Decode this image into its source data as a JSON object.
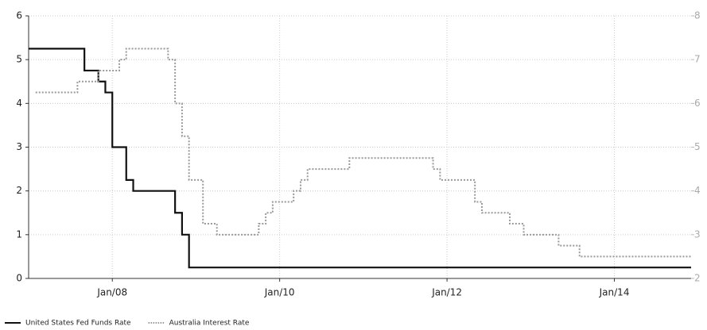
{
  "chart_data": {
    "type": "line",
    "step": "post",
    "grid": true,
    "legend": "bottom-left",
    "xlim": [
      "2007-01",
      "2014-12"
    ],
    "xticks": [
      {
        "value": "2008-01",
        "label": "Jan/08"
      },
      {
        "value": "2010-01",
        "label": "Jan/10"
      },
      {
        "value": "2012-01",
        "label": "Jan/12"
      },
      {
        "value": "2014-01",
        "label": "Jan/14"
      }
    ],
    "ylim": [
      0,
      6
    ],
    "yticks": [
      0,
      1,
      2,
      3,
      4,
      5,
      6
    ],
    "y2lim": [
      2,
      8
    ],
    "y2ticks": [
      2,
      3,
      4,
      5,
      6,
      7,
      8
    ],
    "series": [
      {
        "name": "United States Fed Funds Rate",
        "color": "#111111",
        "style": "solid",
        "axis": "y",
        "x": [
          "2007-01",
          "2007-09",
          "2007-11",
          "2007-12",
          "2008-01",
          "2008-03",
          "2008-04",
          "2008-10",
          "2008-11",
          "2008-12",
          "2014-12"
        ],
        "values": [
          5.25,
          4.75,
          4.5,
          4.25,
          3.0,
          2.25,
          2.0,
          1.5,
          1.0,
          0.25,
          0.25
        ]
      },
      {
        "name": "Australia Interest Rate",
        "color": "#999999",
        "style": "dotted",
        "axis": "y2",
        "x": [
          "2007-02",
          "2007-08",
          "2007-11",
          "2008-02",
          "2008-03",
          "2008-09",
          "2008-10",
          "2008-11",
          "2008-12",
          "2009-02",
          "2009-04",
          "2009-10",
          "2009-11",
          "2009-12",
          "2010-03",
          "2010-04",
          "2010-05",
          "2010-11",
          "2011-11",
          "2011-12",
          "2012-05",
          "2012-06",
          "2012-10",
          "2012-12",
          "2013-05",
          "2013-08",
          "2014-12"
        ],
        "values": [
          6.25,
          6.5,
          6.75,
          7.0,
          7.25,
          7.0,
          6.0,
          5.25,
          4.25,
          3.25,
          3.0,
          3.25,
          3.5,
          3.75,
          4.0,
          4.25,
          4.5,
          4.75,
          4.5,
          4.25,
          3.75,
          3.5,
          3.25,
          3.0,
          2.75,
          2.5,
          2.5
        ]
      }
    ]
  }
}
